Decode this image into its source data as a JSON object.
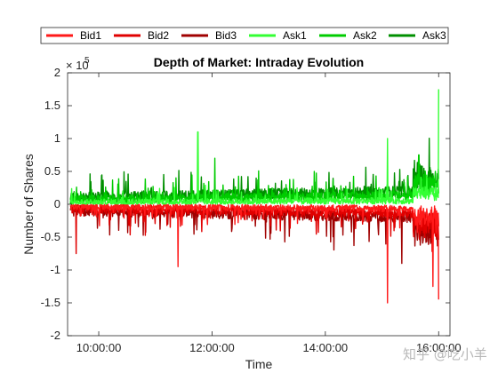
{
  "chart_data": {
    "type": "line",
    "title": "Depth of Market: Intraday Evolution",
    "xlabel": "Time",
    "ylabel": "Number of Shares",
    "y_exponent_label": "× 10^5",
    "y_exponent_base": "× 10",
    "y_exponent_power": "5",
    "x_ticks": [
      "10:00:00",
      "12:00:00",
      "14:00:00",
      "16:00:00"
    ],
    "x_tick_hours": [
      10,
      12,
      14,
      16
    ],
    "xlim_hours": [
      9.45,
      16.2
    ],
    "y_ticks": [
      "-2",
      "-1.5",
      "-1",
      "-0.5",
      "0",
      "0.5",
      "1",
      "1.5",
      "2"
    ],
    "y_tick_values": [
      -2,
      -1.5,
      -1,
      -0.5,
      0,
      0.5,
      1,
      1.5,
      2
    ],
    "ylim": [
      -2,
      2
    ],
    "y_scale": "× 10^5",
    "grid": false,
    "legend_placement": "top, outside plot, horizontal",
    "x_start_hour": 9.5,
    "x_end_hour": 16.0,
    "series": [
      {
        "name": "Bid1",
        "color": "#ff1a1a",
        "side": -1,
        "base": 0.06,
        "spread": 0.05,
        "spike_max": 0.25
      },
      {
        "name": "Bid2",
        "color": "#e00000",
        "side": -1,
        "base": 0.12,
        "spread": 0.07,
        "spike_max": 0.35
      },
      {
        "name": "Bid3",
        "color": "#a00000",
        "side": -1,
        "base": 0.18,
        "spread": 0.08,
        "spike_max": 0.45
      },
      {
        "name": "Ask1",
        "color": "#33ff33",
        "side": 1,
        "base": 0.05,
        "spread": 0.05,
        "spike_max": 0.25
      },
      {
        "name": "Ask2",
        "color": "#00cc00",
        "side": 1,
        "base": 0.12,
        "spread": 0.07,
        "spike_max": 0.35
      },
      {
        "name": "Ask3",
        "color": "#008f00",
        "side": 1,
        "base": 0.18,
        "spread": 0.08,
        "spike_max": 0.45
      }
    ],
    "notable_values": [
      {
        "series": "Ask1",
        "hour": 11.75,
        "value": 1.1
      },
      {
        "series": "Ask1",
        "hour": 15.1,
        "value": 1.0
      },
      {
        "series": "Ask1",
        "hour": 16.0,
        "value": 1.75
      },
      {
        "series": "Ask2",
        "hour": 12.05,
        "value": 0.7
      },
      {
        "series": "Ask2",
        "hour": 15.65,
        "value": 0.75
      },
      {
        "series": "Bid1",
        "hour": 11.4,
        "value": -0.95
      },
      {
        "series": "Bid1",
        "hour": 15.1,
        "value": -1.5
      },
      {
        "series": "Bid1",
        "hour": 15.9,
        "value": -1.25
      },
      {
        "series": "Bid1",
        "hour": 16.0,
        "value": -1.45
      },
      {
        "series": "Bid2",
        "hour": 9.6,
        "value": -0.75
      },
      {
        "series": "Bid3",
        "hour": 15.35,
        "value": -0.9
      }
    ]
  },
  "watermark": "知乎 @吃小羊"
}
